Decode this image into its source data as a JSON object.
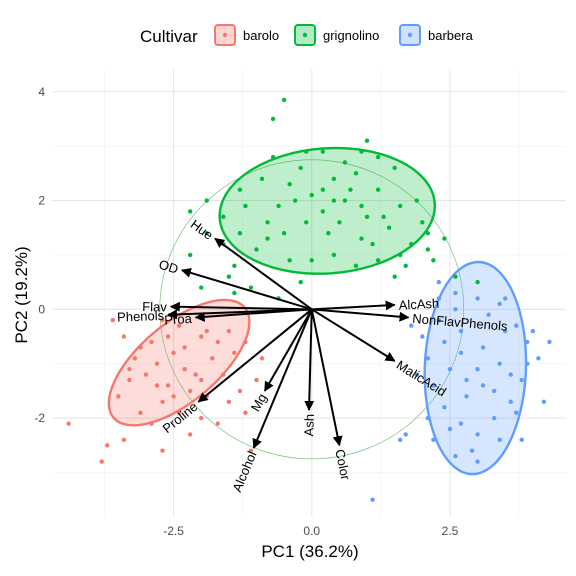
{
  "chart_data": {
    "type": "scatter",
    "subtype": "pca-biplot",
    "title": "",
    "xlabel": "PC1 (36.2%)",
    "ylabel": "PC2 (19.2%)",
    "xlim": [
      -4.7,
      4.6
    ],
    "ylim": [
      -3.8,
      4.4
    ],
    "x_ticks": [
      -2.5,
      0.0,
      2.5
    ],
    "x_tick_labels": [
      "-2.5",
      "0.0",
      "2.5"
    ],
    "y_ticks": [
      -2,
      0,
      2,
      4
    ],
    "y_tick_labels": [
      "-2",
      "0",
      "2",
      "4"
    ],
    "grid": true,
    "legend": {
      "title": "Cultivar",
      "position": "top",
      "entries": [
        "barolo",
        "grignolino",
        "barbera"
      ]
    },
    "colors": {
      "barolo": "#F8766D",
      "grignolino": "#00BA38",
      "barbera": "#619CFF",
      "arrow": "#000000",
      "circle": "#7fbf7f"
    },
    "correlation_circle": {
      "center": [
        0,
        0
      ],
      "radius": 2.75
    },
    "series": [
      {
        "name": "barolo",
        "ellipse": {
          "cx": -2.4,
          "cy": -0.98,
          "rx": 1.55,
          "ry": 0.72,
          "angle_deg": 40
        },
        "points": [
          [
            -3.6,
            -0.2
          ],
          [
            -3.4,
            -0.5
          ],
          [
            -3.2,
            -0.9
          ],
          [
            -3.3,
            -1.3
          ],
          [
            -3.5,
            -1.6
          ],
          [
            -3.1,
            -1.9
          ],
          [
            -2.9,
            -2.1
          ],
          [
            -2.7,
            -1.7
          ],
          [
            -2.6,
            -1.4
          ],
          [
            -2.8,
            -1.0
          ],
          [
            -2.5,
            -0.8
          ],
          [
            -2.3,
            -1.1
          ],
          [
            -2.2,
            -1.5
          ],
          [
            -2.4,
            -1.9
          ],
          [
            -2.0,
            -2.0
          ],
          [
            -1.9,
            -1.6
          ],
          [
            -2.1,
            -1.2
          ],
          [
            -1.8,
            -0.9
          ],
          [
            -1.7,
            -0.6
          ],
          [
            -1.6,
            -1.2
          ],
          [
            -1.5,
            -1.7
          ],
          [
            -1.3,
            -1.5
          ],
          [
            -1.4,
            -0.8
          ],
          [
            -2.0,
            -0.5
          ],
          [
            -2.6,
            -0.5
          ],
          [
            -2.9,
            -0.6
          ],
          [
            -3.0,
            -1.2
          ],
          [
            -2.5,
            -1.6
          ],
          [
            -2.2,
            -2.3
          ],
          [
            -1.7,
            -2.1
          ],
          [
            -1.2,
            -1.9
          ],
          [
            -1.0,
            -1.3
          ],
          [
            -0.9,
            -0.9
          ],
          [
            -2.4,
            -0.3
          ],
          [
            -2.8,
            -1.4
          ],
          [
            -3.1,
            -0.7
          ],
          [
            -2.3,
            -0.7
          ],
          [
            -1.9,
            -0.4
          ],
          [
            -1.5,
            -0.4
          ],
          [
            -1.2,
            -0.6
          ],
          [
            -4.4,
            -2.1
          ],
          [
            -3.7,
            -2.5
          ],
          [
            -3.4,
            -2.4
          ],
          [
            -3.8,
            -2.8
          ],
          [
            -2.7,
            -2.6
          ],
          [
            -2.0,
            -1.3
          ],
          [
            -2.7,
            -0.2
          ],
          [
            -3.3,
            -1.1
          ],
          [
            -1.1,
            -2.6
          ]
        ]
      },
      {
        "name": "grignolino",
        "ellipse": {
          "cx": 0.28,
          "cy": 1.81,
          "rx": 1.95,
          "ry": 1.15,
          "angle_deg": 4
        },
        "points": [
          [
            -0.5,
            3.85
          ],
          [
            -0.7,
            3.5
          ],
          [
            1.0,
            3.1
          ],
          [
            0.9,
            2.9
          ],
          [
            -1.9,
            2.0
          ],
          [
            -2.2,
            1.8
          ],
          [
            -1.6,
            1.7
          ],
          [
            -1.3,
            1.4
          ],
          [
            -1.0,
            1.1
          ],
          [
            -0.8,
            1.6
          ],
          [
            -0.6,
            1.9
          ],
          [
            -0.4,
            2.3
          ],
          [
            -0.2,
            2.6
          ],
          [
            0.0,
            2.1
          ],
          [
            0.2,
            1.8
          ],
          [
            0.4,
            2.4
          ],
          [
            0.6,
            2.0
          ],
          [
            0.8,
            2.5
          ],
          [
            1.0,
            1.7
          ],
          [
            1.2,
            2.2
          ],
          [
            1.4,
            1.5
          ],
          [
            1.6,
            1.9
          ],
          [
            1.8,
            1.2
          ],
          [
            2.0,
            1.6
          ],
          [
            1.5,
            2.6
          ],
          [
            1.2,
            2.8
          ],
          [
            0.6,
            2.7
          ],
          [
            0.2,
            2.9
          ],
          [
            -0.3,
            2.0
          ],
          [
            -0.9,
            2.4
          ],
          [
            -1.3,
            2.2
          ],
          [
            -1.6,
            1.2
          ],
          [
            -1.9,
            1.4
          ],
          [
            -2.2,
            1.0
          ],
          [
            -1.4,
            0.8
          ],
          [
            -0.8,
            1.3
          ],
          [
            -0.5,
            1.4
          ],
          [
            0.0,
            0.9
          ],
          [
            0.4,
            1.0
          ],
          [
            0.8,
            0.8
          ],
          [
            1.2,
            0.9
          ],
          [
            1.7,
            0.8
          ],
          [
            2.1,
            1.1
          ],
          [
            1.9,
            2.0
          ],
          [
            -0.2,
            0.5
          ],
          [
            -0.6,
            0.2
          ],
          [
            -1.1,
            0.4
          ],
          [
            0.3,
            1.4
          ],
          [
            0.9,
            1.3
          ],
          [
            1.3,
            1.7
          ],
          [
            -0.1,
            1.6
          ],
          [
            2.4,
            1.3
          ],
          [
            2.2,
            0.9
          ],
          [
            -1.5,
            0.6
          ],
          [
            1.6,
            1.0
          ],
          [
            0.5,
            1.6
          ],
          [
            -0.4,
            0.9
          ],
          [
            0.7,
            2.2
          ],
          [
            -1.2,
            1.9
          ],
          [
            -2.0,
            0.4
          ],
          [
            2.6,
            0.6
          ],
          [
            3.0,
            0.5
          ],
          [
            2.1,
            1.4
          ],
          [
            1.1,
            1.2
          ],
          [
            0.2,
            2.2
          ],
          [
            -1.4,
            0.3
          ],
          [
            -0.7,
            2.8
          ],
          [
            1.5,
            0.6
          ],
          [
            0.9,
            1.9
          ],
          [
            -0.1,
            2.9
          ],
          [
            0.4,
            2.0
          ]
        ]
      },
      {
        "name": "barbera",
        "ellipse": {
          "cx": 2.96,
          "cy": -1.08,
          "rx": 1.92,
          "ry": 0.93,
          "angle_deg": 88
        },
        "points": [
          [
            2.3,
            0.5
          ],
          [
            2.6,
            0.3
          ],
          [
            3.0,
            0.2
          ],
          [
            3.4,
            0.1
          ],
          [
            3.7,
            -0.3
          ],
          [
            3.9,
            -0.6
          ],
          [
            4.1,
            -0.9
          ],
          [
            3.8,
            -1.3
          ],
          [
            3.6,
            -1.7
          ],
          [
            3.3,
            -2.0
          ],
          [
            3.0,
            -2.3
          ],
          [
            2.7,
            -2.1
          ],
          [
            2.4,
            -1.8
          ],
          [
            2.2,
            -1.4
          ],
          [
            2.1,
            -0.9
          ],
          [
            2.0,
            -0.5
          ],
          [
            2.3,
            -0.2
          ],
          [
            2.7,
            -0.4
          ],
          [
            3.1,
            -0.7
          ],
          [
            3.4,
            -1.0
          ],
          [
            3.1,
            -1.4
          ],
          [
            2.8,
            -1.6
          ],
          [
            2.5,
            -1.1
          ],
          [
            2.7,
            -0.8
          ],
          [
            3.2,
            -0.1
          ],
          [
            3.5,
            -0.4
          ],
          [
            3.9,
            -1.0
          ],
          [
            3.7,
            -1.9
          ],
          [
            3.4,
            -2.4
          ],
          [
            2.9,
            -2.6
          ],
          [
            2.5,
            -2.2
          ],
          [
            2.1,
            -2.0
          ],
          [
            1.9,
            -1.2
          ],
          [
            1.8,
            -0.3
          ],
          [
            2.6,
            0.0
          ],
          [
            3.0,
            -1.1
          ],
          [
            2.8,
            -1.3
          ],
          [
            3.3,
            -1.5
          ],
          [
            3.6,
            -1.2
          ],
          [
            4.0,
            -0.4
          ],
          [
            4.3,
            -0.6
          ],
          [
            4.2,
            -1.7
          ],
          [
            3.0,
            -2.8
          ],
          [
            2.6,
            -2.7
          ],
          [
            2.2,
            -2.4
          ],
          [
            1.7,
            -2.3
          ],
          [
            1.6,
            -2.4
          ],
          [
            2.4,
            -0.6
          ],
          [
            1.1,
            -3.5
          ],
          [
            3.8,
            -2.4
          ],
          [
            2.3,
            0.2
          ],
          [
            3.5,
            0.2
          ]
        ]
      }
    ],
    "variables": [
      {
        "name": "Hue",
        "x": -1.75,
        "y": 1.3
      },
      {
        "name": "OD",
        "x": -2.35,
        "y": 0.72
      },
      {
        "name": "Flav",
        "x": -2.55,
        "y": 0.05
      },
      {
        "name": "Phenols",
        "x": -2.6,
        "y": -0.1
      },
      {
        "name": "Proa",
        "x": -2.1,
        "y": -0.15
      },
      {
        "name": "Proline",
        "x": -2.05,
        "y": -1.7
      },
      {
        "name": "Mg",
        "x": -0.85,
        "y": -1.5
      },
      {
        "name": "Alcohol",
        "x": -1.05,
        "y": -2.55
      },
      {
        "name": "Ash",
        "x": -0.05,
        "y": -1.85
      },
      {
        "name": "Color",
        "x": 0.5,
        "y": -2.5
      },
      {
        "name": "AlcAsh",
        "x": 1.5,
        "y": 0.08
      },
      {
        "name": "NonFlavPhenols",
        "x": 1.75,
        "y": -0.15
      },
      {
        "name": "MalicAcid",
        "x": 1.5,
        "y": -0.95
      }
    ]
  }
}
